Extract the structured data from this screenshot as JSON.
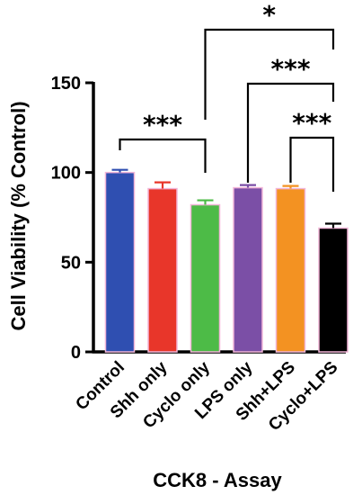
{
  "chart_data": {
    "type": "bar",
    "title": "",
    "ylabel": "Cell Viability (% Control)",
    "xlabel": "CCK8 - Assay",
    "ylim": [
      0,
      150
    ],
    "yticks": [
      0,
      50,
      100,
      150
    ],
    "categories": [
      "Control",
      "Shh only",
      "Cyclo only",
      "LPS only",
      "Shh+LPS",
      "Cyclo+LPS"
    ],
    "values": [
      100,
      91,
      82,
      91.5,
      91,
      69
    ],
    "errors": [
      1.5,
      3.5,
      2.5,
      1.5,
      1.5,
      2.5
    ],
    "colors": [
      "#2f4fb1",
      "#e8362a",
      "#4dbb47",
      "#7b4fa6",
      "#f39222",
      "#000000"
    ],
    "bar_outline": "#f2b6d8",
    "grid": false,
    "significance": [
      {
        "from": 0,
        "to": 2,
        "label": "***",
        "level": 1
      },
      {
        "from": 4,
        "to": 5,
        "label": "***",
        "level": 1
      },
      {
        "from": 3,
        "to": 5,
        "label": "***",
        "level": 2
      },
      {
        "from": 2,
        "to": 5,
        "label": "*",
        "level": 3
      }
    ]
  }
}
